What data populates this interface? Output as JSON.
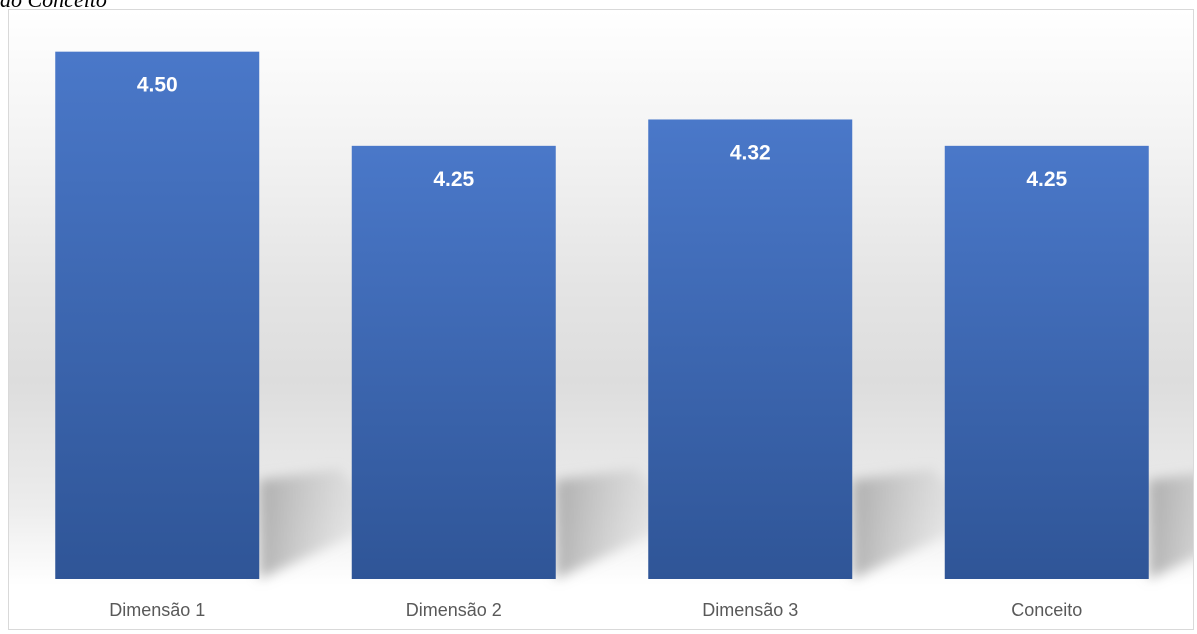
{
  "caption": "ão Conceito",
  "chart_data": {
    "type": "bar",
    "categories": [
      "Dimensão 1",
      "Dimensão 2",
      "Dimensão 3",
      "Conceito"
    ],
    "values": [
      4.5,
      4.25,
      4.32,
      4.25
    ],
    "value_labels": [
      "4.50",
      "4.25",
      "4.32",
      "4.25"
    ],
    "title": "",
    "xlabel": "",
    "ylabel": "",
    "ylim": [
      3.1,
      4.6
    ],
    "grid": false,
    "legend": "none",
    "bar_color": "#4472c4",
    "label_color": "#ffffff",
    "tick_color": "#595959"
  }
}
